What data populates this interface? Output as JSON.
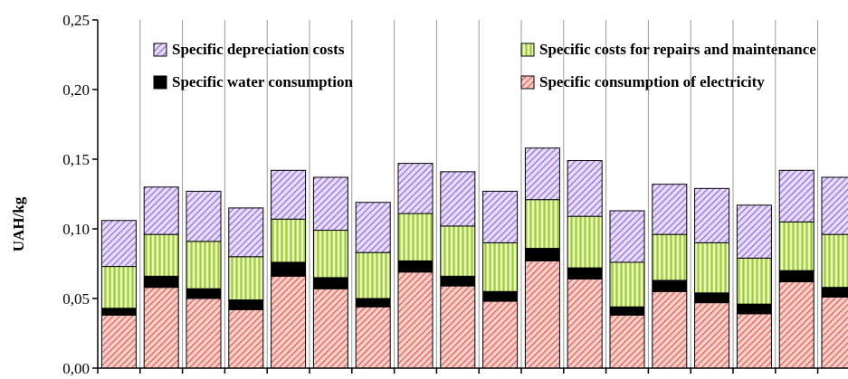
{
  "chart_data": {
    "type": "bar",
    "stacked": true,
    "title": "",
    "xlabel": "",
    "ylabel": "UAH/kg",
    "ylim": [
      0,
      0.25
    ],
    "yticks": [
      "0,00",
      "0,05",
      "0,10",
      "0,15",
      "0,20",
      "0,25"
    ],
    "grid": "vertical",
    "legend_position": "top",
    "series": [
      {
        "name": "Specific consumption of electricity",
        "color": "#e8837a",
        "pattern": "diagonal-hatch",
        "values": [
          0.038,
          0.058,
          0.05,
          0.042,
          0.066,
          0.057,
          0.044,
          0.069,
          0.059,
          0.048,
          0.077,
          0.064,
          0.038,
          0.055,
          0.047,
          0.039,
          0.062,
          0.051
        ]
      },
      {
        "name": "Specific water consumption",
        "color": "#000000",
        "pattern": "solid",
        "values": [
          0.005,
          0.008,
          0.007,
          0.007,
          0.01,
          0.008,
          0.006,
          0.008,
          0.007,
          0.007,
          0.009,
          0.008,
          0.006,
          0.008,
          0.007,
          0.007,
          0.008,
          0.007
        ]
      },
      {
        "name": "Specific costs for repairs and maintenance",
        "color": "#c5e36a",
        "pattern": "vertical-stripes",
        "values": [
          0.03,
          0.03,
          0.034,
          0.031,
          0.031,
          0.034,
          0.033,
          0.034,
          0.036,
          0.035,
          0.035,
          0.037,
          0.032,
          0.033,
          0.036,
          0.033,
          0.035,
          0.038
        ]
      },
      {
        "name": "Specific depreciation costs",
        "color": "#b391ea",
        "pattern": "diagonal-hatch",
        "values": [
          0.033,
          0.034,
          0.036,
          0.035,
          0.035,
          0.038,
          0.036,
          0.036,
          0.039,
          0.037,
          0.037,
          0.04,
          0.037,
          0.036,
          0.039,
          0.038,
          0.037,
          0.041
        ]
      }
    ],
    "legend_layout": [
      [
        "Specific depreciation costs",
        "Specific costs for repairs and maintenance"
      ],
      [
        "Specific water consumption",
        "Specific consumption of electricity"
      ]
    ]
  }
}
